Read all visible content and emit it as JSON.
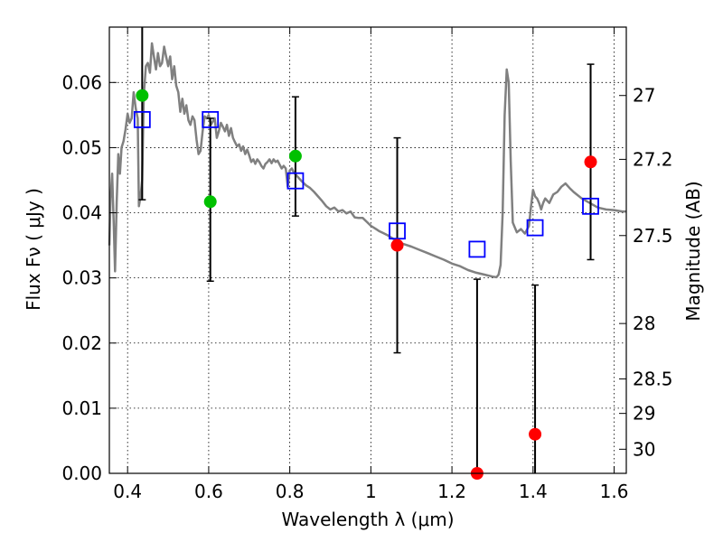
{
  "chart_data": {
    "type": "scatter",
    "xlabel": "Wavelength  λ (μm)",
    "ylabel": "Flux  Fν  ( μJy )",
    "y2label": "Magnitude (AB)",
    "xlim": [
      0.355,
      1.63
    ],
    "ylim": [
      0.0,
      0.0685
    ],
    "grid": true,
    "x_ticks": [
      0.4,
      0.6,
      0.8,
      1.0,
      1.2,
      1.4,
      1.6
    ],
    "x_tick_labels": [
      "0.4",
      "0.6",
      "0.8",
      "1",
      "1.2",
      "1.4",
      "1.6"
    ],
    "y_ticks": [
      0.0,
      0.01,
      0.02,
      0.03,
      0.04,
      0.05,
      0.06
    ],
    "y_tick_labels": [
      "0.00",
      "0.01",
      "0.02",
      "0.03",
      "0.04",
      "0.05",
      "0.06"
    ],
    "y2_ticks": [
      {
        "label": "27",
        "flux": 0.058
      },
      {
        "label": "27.2",
        "flux": 0.0482
      },
      {
        "label": "27.5",
        "flux": 0.0365
      },
      {
        "label": "28",
        "flux": 0.023
      },
      {
        "label": "28.5",
        "flux": 0.0145
      },
      {
        "label": "29",
        "flux": 0.0092
      },
      {
        "label": "30",
        "flux": 0.0037
      }
    ],
    "colors": {
      "model": "#808080",
      "model_photometry": "#0000ff",
      "detection": "#00c000",
      "non_detection": "#ff0000",
      "errorbar": "#000000",
      "grid": "#000000"
    },
    "series": [
      {
        "role": "model_spectrum",
        "points": [
          [
            0.355,
            0.035
          ],
          [
            0.358,
            0.0422
          ],
          [
            0.362,
            0.046
          ],
          [
            0.366,
            0.038
          ],
          [
            0.369,
            0.031
          ],
          [
            0.373,
            0.0415
          ],
          [
            0.377,
            0.049
          ],
          [
            0.381,
            0.046
          ],
          [
            0.385,
            0.05
          ],
          [
            0.39,
            0.051
          ],
          [
            0.395,
            0.0528
          ],
          [
            0.4,
            0.0552
          ],
          [
            0.405,
            0.0538
          ],
          [
            0.41,
            0.0545
          ],
          [
            0.415,
            0.0585
          ],
          [
            0.42,
            0.056
          ],
          [
            0.425,
            0.0545
          ],
          [
            0.428,
            0.041
          ],
          [
            0.432,
            0.0425
          ],
          [
            0.436,
            0.045
          ],
          [
            0.44,
            0.058
          ],
          [
            0.445,
            0.0625
          ],
          [
            0.45,
            0.063
          ],
          [
            0.455,
            0.0615
          ],
          [
            0.46,
            0.066
          ],
          [
            0.465,
            0.064
          ],
          [
            0.47,
            0.062
          ],
          [
            0.475,
            0.0645
          ],
          [
            0.48,
            0.0625
          ],
          [
            0.485,
            0.063
          ],
          [
            0.49,
            0.0655
          ],
          [
            0.495,
            0.064
          ],
          [
            0.5,
            0.0625
          ],
          [
            0.505,
            0.064
          ],
          [
            0.51,
            0.0605
          ],
          [
            0.515,
            0.0625
          ],
          [
            0.52,
            0.0595
          ],
          [
            0.525,
            0.0585
          ],
          [
            0.53,
            0.0555
          ],
          [
            0.535,
            0.0575
          ],
          [
            0.54,
            0.0552
          ],
          [
            0.545,
            0.0565
          ],
          [
            0.55,
            0.0542
          ],
          [
            0.555,
            0.0535
          ],
          [
            0.56,
            0.0548
          ],
          [
            0.565,
            0.0542
          ],
          [
            0.57,
            0.0512
          ],
          [
            0.575,
            0.049
          ],
          [
            0.58,
            0.0495
          ],
          [
            0.585,
            0.0525
          ],
          [
            0.59,
            0.0548
          ],
          [
            0.595,
            0.0545
          ],
          [
            0.6,
            0.055
          ],
          [
            0.605,
            0.0535
          ],
          [
            0.61,
            0.054
          ],
          [
            0.615,
            0.0545
          ],
          [
            0.62,
            0.0515
          ],
          [
            0.625,
            0.0525
          ],
          [
            0.63,
            0.0538
          ],
          [
            0.635,
            0.0532
          ],
          [
            0.64,
            0.0525
          ],
          [
            0.645,
            0.0535
          ],
          [
            0.65,
            0.0518
          ],
          [
            0.655,
            0.053
          ],
          [
            0.66,
            0.0515
          ],
          [
            0.665,
            0.0508
          ],
          [
            0.67,
            0.0502
          ],
          [
            0.675,
            0.0505
          ],
          [
            0.68,
            0.0495
          ],
          [
            0.685,
            0.0502
          ],
          [
            0.69,
            0.049
          ],
          [
            0.695,
            0.0497
          ],
          [
            0.7,
            0.0488
          ],
          [
            0.705,
            0.0478
          ],
          [
            0.71,
            0.0482
          ],
          [
            0.715,
            0.0475
          ],
          [
            0.72,
            0.0482
          ],
          [
            0.725,
            0.0478
          ],
          [
            0.73,
            0.0472
          ],
          [
            0.735,
            0.0468
          ],
          [
            0.74,
            0.0475
          ],
          [
            0.745,
            0.0478
          ],
          [
            0.75,
            0.0482
          ],
          [
            0.755,
            0.0476
          ],
          [
            0.76,
            0.0482
          ],
          [
            0.765,
            0.0478
          ],
          [
            0.77,
            0.048
          ],
          [
            0.775,
            0.0474
          ],
          [
            0.78,
            0.0468
          ],
          [
            0.785,
            0.0472
          ],
          [
            0.79,
            0.0468
          ],
          [
            0.795,
            0.044
          ],
          [
            0.8,
            0.0465
          ],
          [
            0.805,
            0.0468
          ],
          [
            0.81,
            0.0462
          ],
          [
            0.82,
            0.0455
          ],
          [
            0.83,
            0.0448
          ],
          [
            0.84,
            0.0442
          ],
          [
            0.85,
            0.0438
          ],
          [
            0.86,
            0.0432
          ],
          [
            0.87,
            0.0425
          ],
          [
            0.88,
            0.0418
          ],
          [
            0.89,
            0.041
          ],
          [
            0.9,
            0.0405
          ],
          [
            0.91,
            0.0408
          ],
          [
            0.92,
            0.0402
          ],
          [
            0.93,
            0.0404
          ],
          [
            0.94,
            0.0399
          ],
          [
            0.95,
            0.0402
          ],
          [
            0.96,
            0.0393
          ],
          [
            0.97,
            0.0392
          ],
          [
            0.98,
            0.0392
          ],
          [
            0.99,
            0.0386
          ],
          [
            1.0,
            0.038
          ],
          [
            1.01,
            0.0376
          ],
          [
            1.02,
            0.0372
          ],
          [
            1.03,
            0.0369
          ],
          [
            1.04,
            0.0366
          ],
          [
            1.05,
            0.0362
          ],
          [
            1.06,
            0.0358
          ],
          [
            1.08,
            0.0352
          ],
          [
            1.1,
            0.0348
          ],
          [
            1.12,
            0.0343
          ],
          [
            1.14,
            0.0338
          ],
          [
            1.16,
            0.0333
          ],
          [
            1.18,
            0.0328
          ],
          [
            1.2,
            0.0322
          ],
          [
            1.22,
            0.0318
          ],
          [
            1.24,
            0.0312
          ],
          [
            1.26,
            0.0308
          ],
          [
            1.28,
            0.0305
          ],
          [
            1.3,
            0.0302
          ],
          [
            1.31,
            0.0301
          ],
          [
            1.315,
            0.0305
          ],
          [
            1.32,
            0.032
          ],
          [
            1.325,
            0.04
          ],
          [
            1.33,
            0.055
          ],
          [
            1.335,
            0.062
          ],
          [
            1.34,
            0.06
          ],
          [
            1.345,
            0.048
          ],
          [
            1.35,
            0.0385
          ],
          [
            1.36,
            0.037
          ],
          [
            1.37,
            0.0375
          ],
          [
            1.38,
            0.0368
          ],
          [
            1.39,
            0.038
          ],
          [
            1.395,
            0.041
          ],
          [
            1.4,
            0.0435
          ],
          [
            1.405,
            0.0425
          ],
          [
            1.41,
            0.0422
          ],
          [
            1.415,
            0.0415
          ],
          [
            1.42,
            0.0405
          ],
          [
            1.425,
            0.0415
          ],
          [
            1.43,
            0.0422
          ],
          [
            1.44,
            0.0415
          ],
          [
            1.45,
            0.0428
          ],
          [
            1.46,
            0.0432
          ],
          [
            1.47,
            0.044
          ],
          [
            1.48,
            0.0445
          ],
          [
            1.49,
            0.0438
          ],
          [
            1.5,
            0.0432
          ],
          [
            1.52,
            0.0422
          ],
          [
            1.54,
            0.0415
          ],
          [
            1.56,
            0.0408
          ],
          [
            1.58,
            0.0405
          ],
          [
            1.6,
            0.0404
          ],
          [
            1.62,
            0.0402
          ],
          [
            1.63,
            0.0402
          ]
        ]
      },
      {
        "role": "model_photometry",
        "marker": "open-square",
        "points": [
          [
            0.436,
            0.0543
          ],
          [
            0.604,
            0.0543
          ],
          [
            0.814,
            0.0449
          ],
          [
            1.065,
            0.0372
          ],
          [
            1.262,
            0.0344
          ],
          [
            1.405,
            0.0377
          ],
          [
            1.542,
            0.041
          ]
        ]
      },
      {
        "role": "observed_detections",
        "marker": "filled-circle",
        "points": [
          [
            0.436,
            0.058
          ],
          [
            0.604,
            0.0417
          ],
          [
            0.814,
            0.0487
          ]
        ]
      },
      {
        "role": "observed_nondetections",
        "marker": "filled-circle",
        "points": [
          [
            1.065,
            0.035
          ],
          [
            1.262,
            0.0
          ],
          [
            1.405,
            0.006
          ],
          [
            1.542,
            0.0478
          ]
        ]
      },
      {
        "role": "error_bars",
        "points": [
          {
            "x": 0.436,
            "low": 0.042,
            "high": 0.0685
          },
          {
            "x": 0.604,
            "low": 0.0295,
            "high": 0.0545
          },
          {
            "x": 0.814,
            "low": 0.0395,
            "high": 0.0578
          },
          {
            "x": 1.065,
            "low": 0.0185,
            "high": 0.0515
          },
          {
            "x": 1.262,
            "low": 0.0,
            "high": 0.0298
          },
          {
            "x": 1.405,
            "low": 0.0,
            "high": 0.0289
          },
          {
            "x": 1.542,
            "low": 0.0328,
            "high": 0.0628
          }
        ]
      }
    ]
  }
}
